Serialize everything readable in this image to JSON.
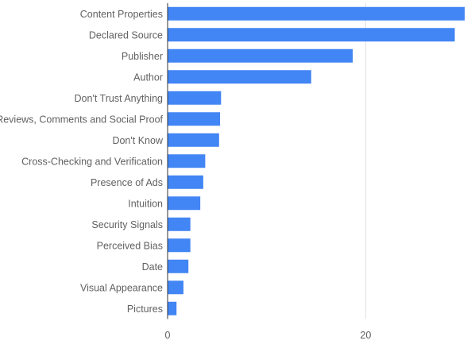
{
  "chart_data": {
    "type": "bar",
    "orientation": "horizontal",
    "categories": [
      "Content Properties",
      "Declared Source",
      "Publisher",
      "Author",
      "Don't Trust Anything",
      "Reviews, Comments and Social Proof",
      "Don't Know",
      "Cross-Checking and Verification",
      "Presence of Ads",
      "Intuition",
      "Security Signals",
      "Perceived Bias",
      "Date",
      "Visual Appearance",
      "Pictures"
    ],
    "values": [
      30,
      29,
      18.7,
      14.5,
      5.4,
      5.3,
      5.2,
      3.8,
      3.6,
      3.3,
      2.3,
      2.3,
      2.1,
      1.6,
      0.9
    ],
    "x_ticks": [
      0,
      20
    ],
    "xlim": [
      0,
      30
    ],
    "grid": true,
    "bar_color": "#4285f4",
    "title": "",
    "xlabel": "",
    "ylabel": ""
  }
}
